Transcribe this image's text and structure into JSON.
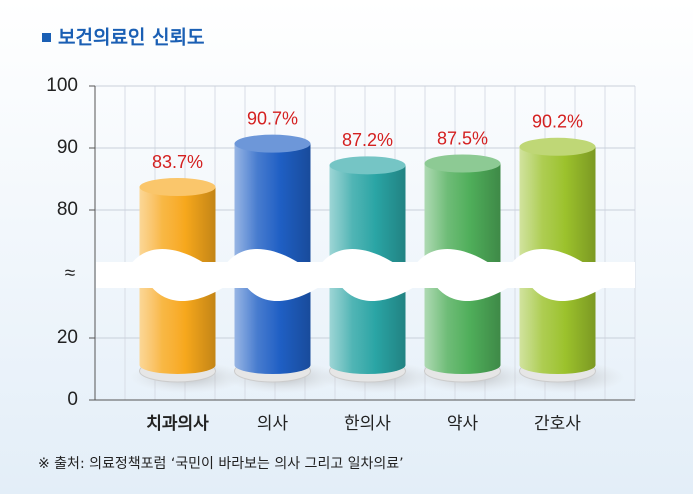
{
  "chart_data": {
    "type": "bar",
    "title": "보건의료인 신뢰도",
    "categories": [
      "치과의사",
      "의사",
      "한의사",
      "약사",
      "간호사"
    ],
    "values": [
      83.7,
      90.7,
      87.2,
      87.5,
      90.2
    ],
    "value_labels": [
      "83.7%",
      "90.7%",
      "87.2%",
      "87.5%",
      "90.2%"
    ],
    "colors": [
      "#f7a81c",
      "#1f5fc4",
      "#2aa5a5",
      "#4fae5a",
      "#9cc22c"
    ],
    "ylim": [
      0,
      100
    ],
    "yticks": [
      0,
      20,
      80,
      90,
      100
    ],
    "y_break": {
      "from": 20,
      "to": 80,
      "label": "≈"
    },
    "grid": true,
    "source": "※ 출처: 의료정책포럼 ‘국민이 바라보는 의사 그리고 일차의료’"
  }
}
